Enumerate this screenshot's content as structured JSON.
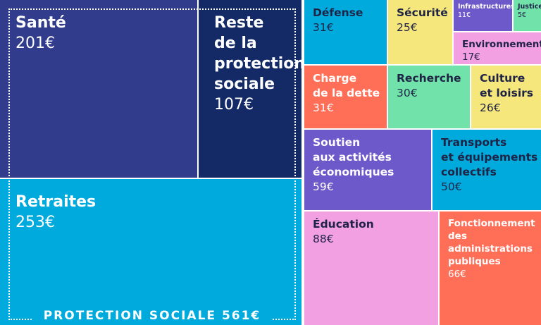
{
  "chart_data": {
    "type": "treemap",
    "unit": "€",
    "group": {
      "label": "PROTECTION SOCIALE 561€",
      "total": 561
    },
    "items": [
      {
        "name": "Santé",
        "label": "Santé",
        "value": 201,
        "value_text": "201€",
        "color": "#313d8c",
        "group": "protection"
      },
      {
        "name": "Reste de la protection sociale",
        "label": "Reste\nde la\nprotection\nsociale",
        "value": 107,
        "value_text": "107€",
        "color": "#142a66",
        "group": "protection"
      },
      {
        "name": "Retraites",
        "label": "Retraites",
        "value": 253,
        "value_text": "253€",
        "color": "#00aadc",
        "group": "protection"
      },
      {
        "name": "Défense",
        "label": "Défense",
        "value": 31,
        "value_text": "31€",
        "color": "#00aadc"
      },
      {
        "name": "Sécurité",
        "label": "Sécurité",
        "value": 25,
        "value_text": "25€",
        "color": "#f6e77c"
      },
      {
        "name": "Infrastructures",
        "label": "Infrastructures",
        "value": 11,
        "value_text": "11€",
        "color": "#6d59c9"
      },
      {
        "name": "Justice",
        "label": "Justice",
        "value": 5,
        "value_text": "5€",
        "color": "#71e3aa"
      },
      {
        "name": "Environnement",
        "label": "Environnement",
        "value": 17,
        "value_text": "17€",
        "color": "#f2a0e2"
      },
      {
        "name": "Charge de la dette",
        "label": "Charge\nde la dette",
        "value": 31,
        "value_text": "31€",
        "color": "#ff6e57"
      },
      {
        "name": "Recherche",
        "label": "Recherche",
        "value": 30,
        "value_text": "30€",
        "color": "#71e3aa"
      },
      {
        "name": "Culture et loisirs",
        "label": "Culture\net loisirs",
        "value": 26,
        "value_text": "26€",
        "color": "#f6e77c"
      },
      {
        "name": "Soutien aux activités économiques",
        "label": "Soutien\naux activités\néconomiques",
        "value": 59,
        "value_text": "59€",
        "color": "#6d59c9"
      },
      {
        "name": "Transports et équipements collectifs",
        "label": "Transports\net équipements\ncollectifs",
        "value": 50,
        "value_text": "50€",
        "color": "#00aadc"
      },
      {
        "name": "Éducation",
        "label": "Éducation",
        "value": 88,
        "value_text": "88€",
        "color": "#f2a0e2"
      },
      {
        "name": "Fonctionnement des administrations publiques",
        "label": "Fonctionnement\ndes\nadministrations\npubliques",
        "value": 66,
        "value_text": "66€",
        "color": "#ff6e57"
      }
    ]
  }
}
